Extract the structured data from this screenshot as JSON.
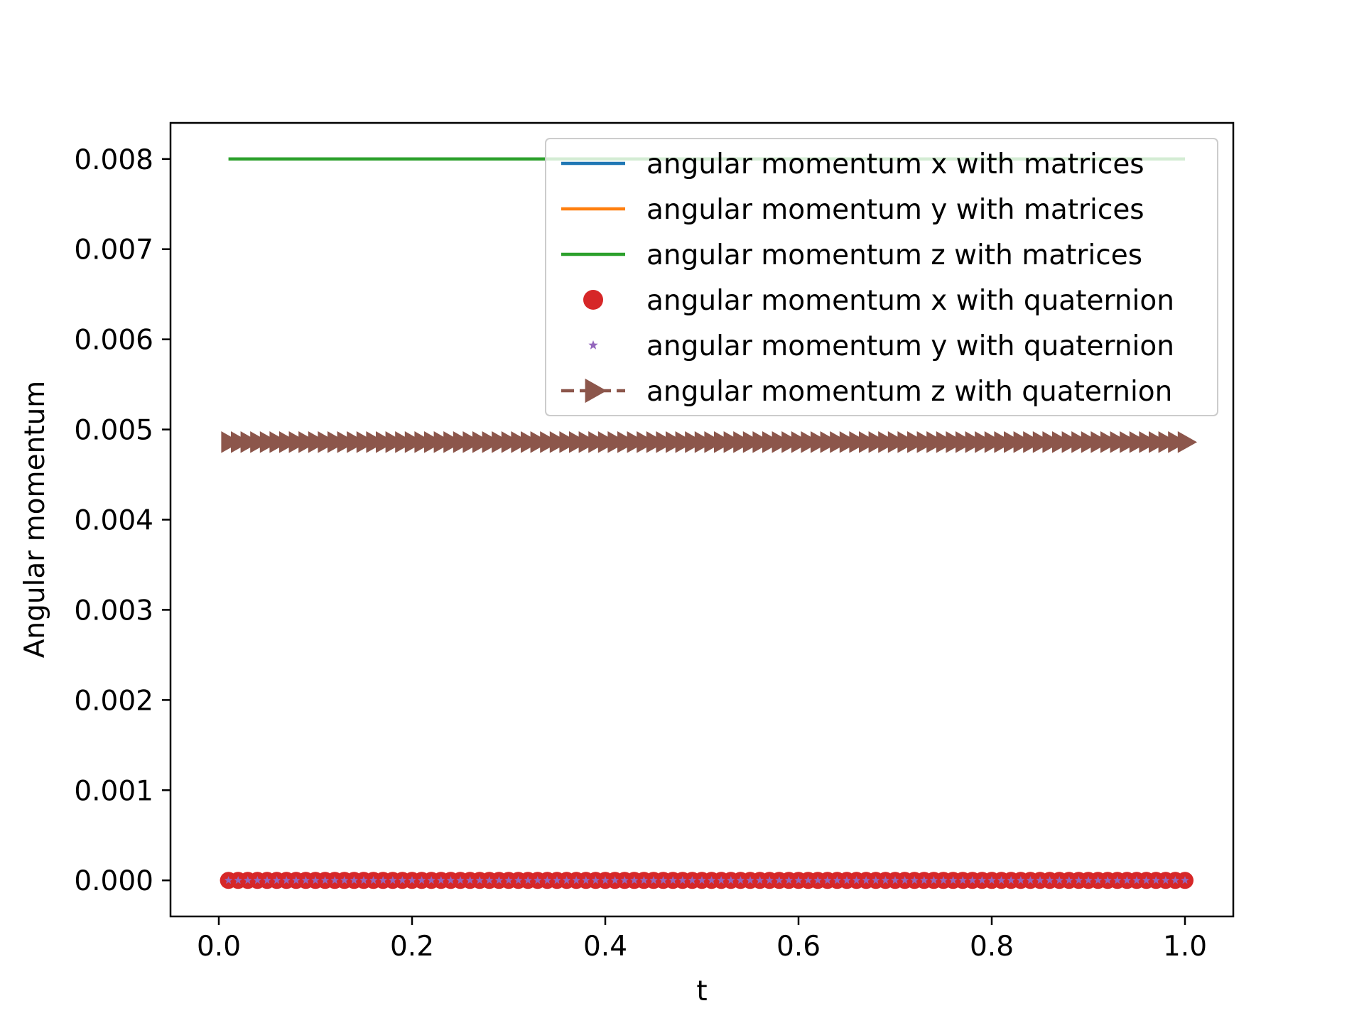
{
  "chart_data": {
    "type": "line",
    "xlabel": "t",
    "ylabel": "Angular momentum",
    "xlim": [
      -0.05,
      1.05
    ],
    "ylim": [
      -0.0004,
      0.0084
    ],
    "xticks": [
      0.0,
      0.2,
      0.4,
      0.6,
      0.8,
      1.0
    ],
    "xtick_labels": [
      "0.0",
      "0.2",
      "0.4",
      "0.6",
      "0.8",
      "1.0"
    ],
    "yticks": [
      0.0,
      0.001,
      0.002,
      0.003,
      0.004,
      0.005,
      0.006,
      0.007,
      0.008
    ],
    "ytick_labels": [
      "0.000",
      "0.001",
      "0.002",
      "0.003",
      "0.004",
      "0.005",
      "0.006",
      "0.007",
      "0.008"
    ],
    "grid": false,
    "legend_position": "top-right",
    "x": {
      "start": 0.01,
      "end": 1.0,
      "count": 100
    },
    "series": [
      {
        "name": "angular momentum x with matrices",
        "value": 0.0,
        "style": "line",
        "color": "#1f77b4"
      },
      {
        "name": "angular momentum y with matrices",
        "value": 0.0,
        "style": "line",
        "color": "#ff7f0e"
      },
      {
        "name": "angular momentum z with matrices",
        "value": 0.008,
        "style": "line",
        "color": "#2ca02c"
      },
      {
        "name": "angular momentum x with quaternion",
        "value": 0.0,
        "style": "circle-marker",
        "color": "#d62728"
      },
      {
        "name": "angular momentum y with quaternion",
        "value": 0.0,
        "style": "star-marker",
        "color": "#9467bd"
      },
      {
        "name": "angular momentum z with quaternion",
        "value": 0.00486,
        "style": "dashed-triangle-marker",
        "color": "#8c564b"
      }
    ]
  }
}
